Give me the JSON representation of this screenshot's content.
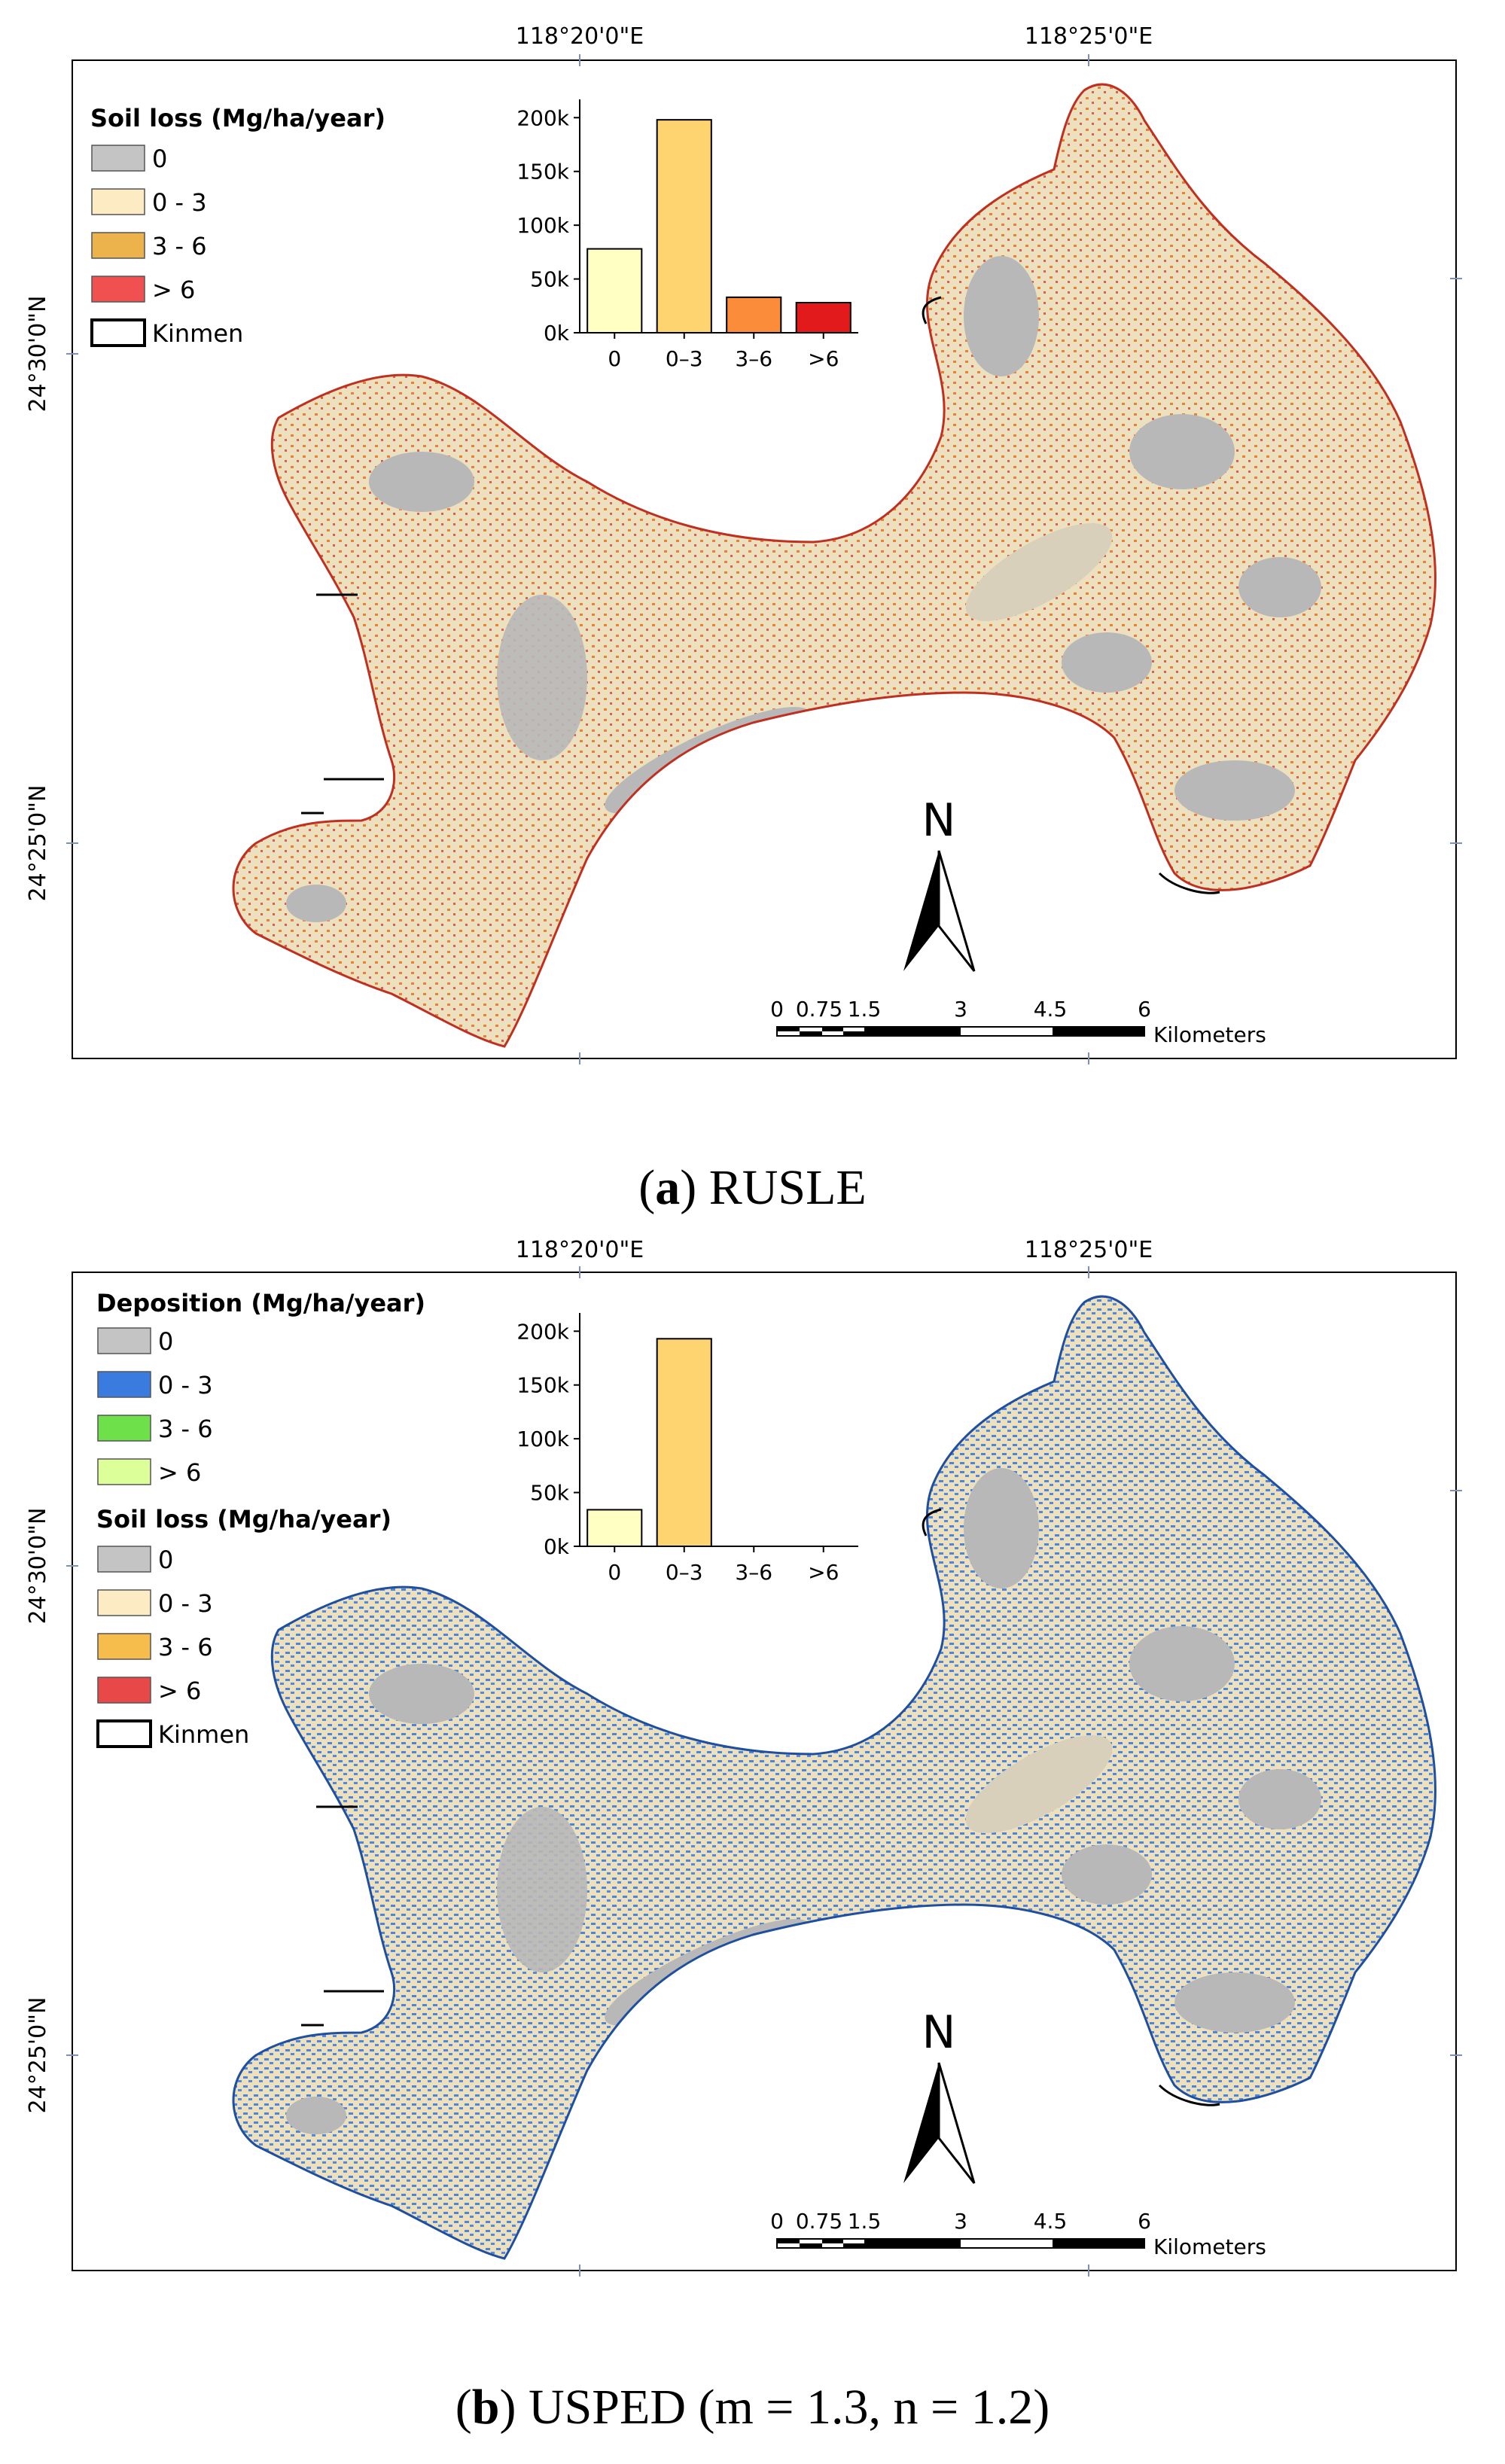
{
  "panels": [
    {
      "coords": {
        "top": [
          "118°20'0\"E",
          "118°25'0\"E"
        ],
        "left": [
          "24°30'0\"N",
          "24°25'0\"N"
        ]
      },
      "legend": {
        "title": "Soil loss (Mg/ha/year)",
        "items": [
          {
            "label": "0",
            "color": "#c4c4c4"
          },
          {
            "label": "0 - 3",
            "color": "#fdebc4"
          },
          {
            "label": "3 - 6",
            "color": "#ecb24c"
          },
          {
            "label": "> 6",
            "color": "#f05050"
          }
        ],
        "boundary": "Kinmen"
      },
      "north": "N",
      "scalebar": {
        "ticks": [
          "0",
          "0.75",
          "1.5",
          "3",
          "4.5",
          "6"
        ],
        "unit": "Kilometers"
      },
      "caption": {
        "letter": "a",
        "text": "RUSLE"
      },
      "overlay_color": "#e8711c"
    },
    {
      "coords": {
        "top": [
          "118°20'0\"E",
          "118°25'0\"E"
        ],
        "left": [
          "24°30'0\"N",
          "24°25'0\"N"
        ]
      },
      "legend": {
        "title": "Deposition  (Mg/ha/year)",
        "items": [
          {
            "label": "0",
            "color": "#c4c4c4"
          },
          {
            "label": "0 - 3",
            "color": "#3a7be0"
          },
          {
            "label": "3 - 6",
            "color": "#6ee04a"
          },
          {
            "label": "> 6",
            "color": "#ddff9a"
          }
        ],
        "title2": "Soil loss  (Mg/ha/year)",
        "items2": [
          {
            "label": "0",
            "color": "#c4c4c4"
          },
          {
            "label": "0 - 3",
            "color": "#fdebc4"
          },
          {
            "label": "3 - 6",
            "color": "#f6bc4c"
          },
          {
            "label": "> 6",
            "color": "#e84848"
          }
        ],
        "boundary": "Kinmen"
      },
      "north": "N",
      "scalebar": {
        "ticks": [
          "0",
          "0.75",
          "1.5",
          "3",
          "4.5",
          "6"
        ],
        "unit": "Kilometers"
      },
      "caption": {
        "letter": "b",
        "text": "USPED (m = 1.3, n = 1.2)"
      },
      "overlay_color": "#3a7be0"
    }
  ],
  "chart_data": [
    {
      "type": "bar",
      "categories": [
        "0",
        "0–3",
        "3–6",
        ">6"
      ],
      "values": [
        78000,
        198000,
        33000,
        28000
      ],
      "colors": [
        "#ffffc4",
        "#fed470",
        "#fb8c3a",
        "#e31a1c"
      ],
      "yticks": [
        "0k",
        "50k",
        "100k",
        "150k",
        "200k"
      ],
      "ylim": [
        0,
        210000
      ]
    },
    {
      "type": "bar",
      "categories": [
        "0",
        "0–3",
        "3–6",
        ">6"
      ],
      "values": [
        34000,
        193000,
        0,
        0
      ],
      "colors": [
        "#ffffc4",
        "#fed470",
        "#fb8c3a",
        "#e31a1c"
      ],
      "yticks": [
        "0k",
        "50k",
        "100k",
        "150k",
        "200k"
      ],
      "ylim": [
        0,
        210000
      ]
    }
  ]
}
